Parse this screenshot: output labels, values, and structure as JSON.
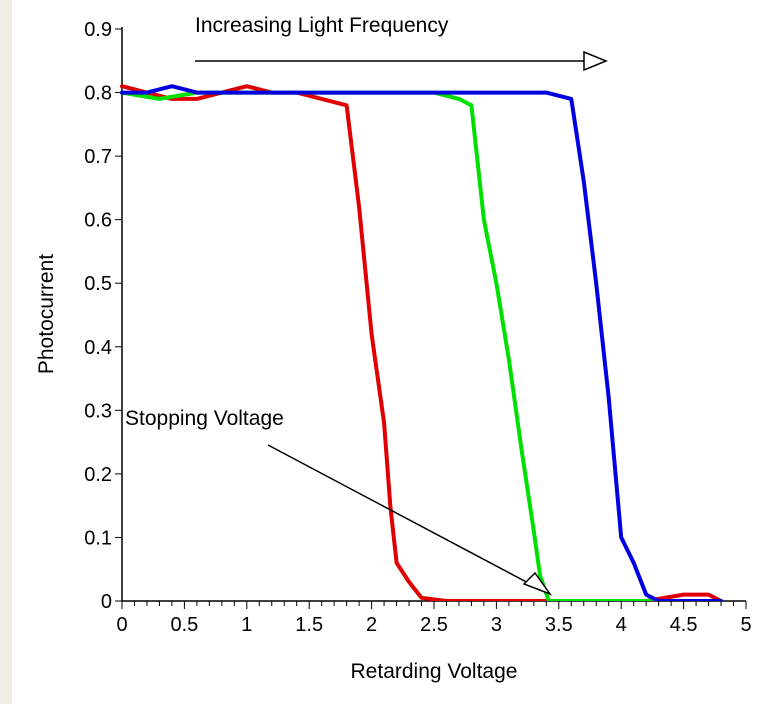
{
  "chart_data": {
    "type": "line",
    "title": "",
    "xlabel": "Retarding Voltage",
    "ylabel": "Photocurrent",
    "xlim": [
      0,
      5
    ],
    "ylim": [
      0,
      0.9
    ],
    "x_ticks": [
      "0",
      "0.5",
      "1",
      "1.5",
      "2",
      "2.5",
      "3",
      "3.5",
      "4",
      "4.5",
      "5"
    ],
    "y_ticks": [
      "0",
      "0.1",
      "0.2",
      "0.3",
      "0.4",
      "0.5",
      "0.6",
      "0.7",
      "0.8",
      "0.9"
    ],
    "grid": false,
    "legend": "none",
    "annotations": {
      "frequency_label": "Increasing Light Frequency",
      "stopping_label": "Stopping Voltage"
    },
    "series": [
      {
        "color": "#e00000",
        "points": [
          [
            0,
            0.81
          ],
          [
            0.2,
            0.8
          ],
          [
            0.4,
            0.79
          ],
          [
            0.6,
            0.79
          ],
          [
            0.8,
            0.8
          ],
          [
            1.0,
            0.81
          ],
          [
            1.2,
            0.8
          ],
          [
            1.4,
            0.8
          ],
          [
            1.6,
            0.79
          ],
          [
            1.8,
            0.78
          ],
          [
            1.9,
            0.62
          ],
          [
            2.0,
            0.42
          ],
          [
            2.1,
            0.28
          ],
          [
            2.15,
            0.15
          ],
          [
            2.2,
            0.06
          ],
          [
            2.3,
            0.03
          ],
          [
            2.4,
            0.005
          ],
          [
            2.6,
            0.0
          ],
          [
            3.0,
            0.0
          ],
          [
            3.4,
            0.0
          ],
          [
            3.8,
            0.0
          ],
          [
            4.2,
            0.0
          ],
          [
            4.5,
            0.01
          ],
          [
            4.7,
            0.01
          ],
          [
            4.8,
            0.0
          ]
        ]
      },
      {
        "color": "#00e000",
        "points": [
          [
            0,
            0.8
          ],
          [
            0.3,
            0.79
          ],
          [
            0.6,
            0.8
          ],
          [
            1.0,
            0.8
          ],
          [
            1.4,
            0.8
          ],
          [
            1.8,
            0.8
          ],
          [
            2.2,
            0.8
          ],
          [
            2.5,
            0.8
          ],
          [
            2.7,
            0.79
          ],
          [
            2.8,
            0.78
          ],
          [
            2.9,
            0.6
          ],
          [
            3.0,
            0.5
          ],
          [
            3.1,
            0.38
          ],
          [
            3.2,
            0.24
          ],
          [
            3.3,
            0.11
          ],
          [
            3.35,
            0.04
          ],
          [
            3.42,
            0.0
          ],
          [
            3.6,
            0.0
          ],
          [
            4.0,
            0.0
          ],
          [
            4.4,
            0.0
          ],
          [
            4.8,
            0.0
          ]
        ]
      },
      {
        "color": "#0000e0",
        "points": [
          [
            0,
            0.8
          ],
          [
            0.2,
            0.8
          ],
          [
            0.4,
            0.81
          ],
          [
            0.6,
            0.8
          ],
          [
            0.8,
            0.8
          ],
          [
            1.0,
            0.8
          ],
          [
            1.2,
            0.8
          ],
          [
            1.4,
            0.8
          ],
          [
            1.6,
            0.8
          ],
          [
            1.8,
            0.8
          ],
          [
            2.0,
            0.8
          ],
          [
            2.2,
            0.8
          ],
          [
            2.4,
            0.8
          ],
          [
            2.6,
            0.8
          ],
          [
            2.8,
            0.8
          ],
          [
            3.0,
            0.8
          ],
          [
            3.2,
            0.8
          ],
          [
            3.4,
            0.8
          ],
          [
            3.6,
            0.79
          ],
          [
            3.7,
            0.66
          ],
          [
            3.8,
            0.5
          ],
          [
            3.9,
            0.32
          ],
          [
            4.0,
            0.1
          ],
          [
            4.1,
            0.06
          ],
          [
            4.2,
            0.01
          ],
          [
            4.3,
            0.0
          ],
          [
            4.6,
            0.0
          ],
          [
            4.8,
            0.0
          ]
        ]
      }
    ]
  }
}
